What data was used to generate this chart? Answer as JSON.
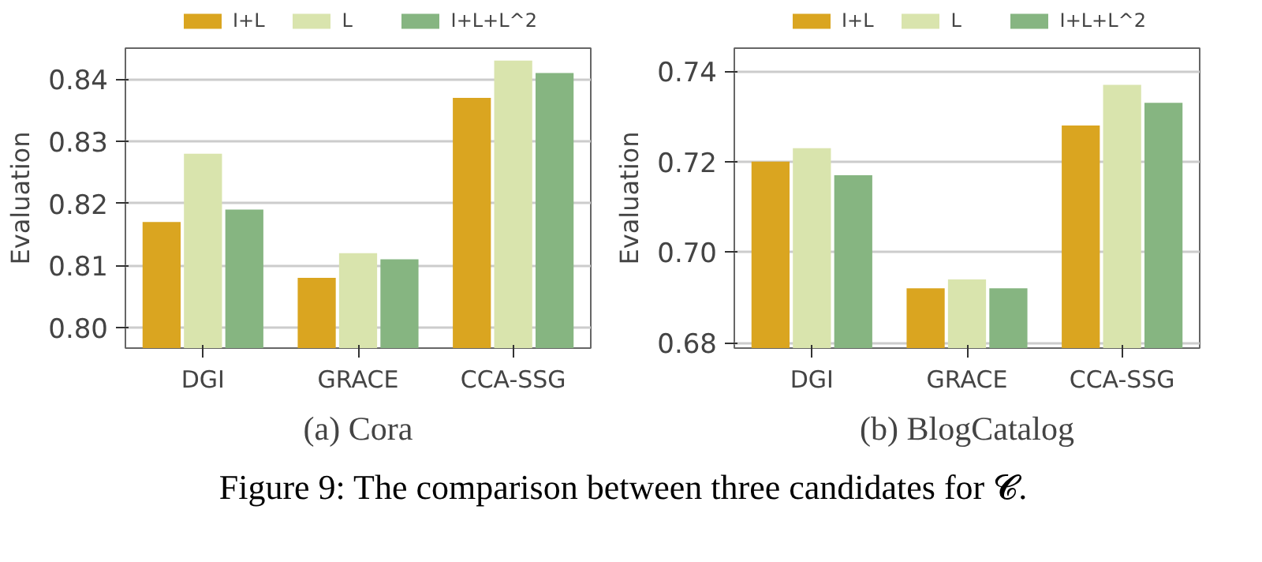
{
  "chart_data": [
    {
      "type": "bar",
      "title": "(a) Cora",
      "ylabel": "Evaluation",
      "categories": [
        "DGI",
        "GRACE",
        "CCA-SSG"
      ],
      "series": [
        {
          "name": "I+L",
          "color": "#daa520",
          "values": [
            0.817,
            0.808,
            0.837
          ]
        },
        {
          "name": "L",
          "color": "#d9e4ad",
          "values": [
            0.828,
            0.812,
            0.843
          ]
        },
        {
          "name": "I+L+L^2",
          "color": "#86b581",
          "values": [
            0.819,
            0.811,
            0.841
          ]
        }
      ],
      "ylim": [
        0.7967,
        0.845
      ],
      "yticks": [
        {
          "value": 0.8,
          "label": "0.80"
        },
        0.81,
        0.82,
        0.83,
        0.84
      ],
      "grid": "y",
      "legend": "top"
    },
    {
      "type": "bar",
      "title": "(b) BlogCatalog",
      "ylabel": "Evaluation",
      "categories": [
        "DGI",
        "GRACE",
        "CCA-SSG"
      ],
      "series": [
        {
          "name": "I+L",
          "color": "#daa520",
          "values": [
            0.72,
            0.692,
            0.728
          ]
        },
        {
          "name": "L",
          "color": "#d9e4ad",
          "values": [
            0.723,
            0.694,
            0.737
          ]
        },
        {
          "name": "I+L+L^2",
          "color": "#86b581",
          "values": [
            0.717,
            0.692,
            0.733
          ]
        }
      ],
      "ylim": [
        0.6788,
        0.7451
      ],
      "yticks": [
        0.68,
        {
          "value": 0.7,
          "label": "0.70"
        },
        0.72,
        0.74
      ],
      "grid": "y",
      "legend": "top",
      "annotations": [
        "Figure 9: The comparison between three candidates for 𝓒."
      ]
    }
  ]
}
